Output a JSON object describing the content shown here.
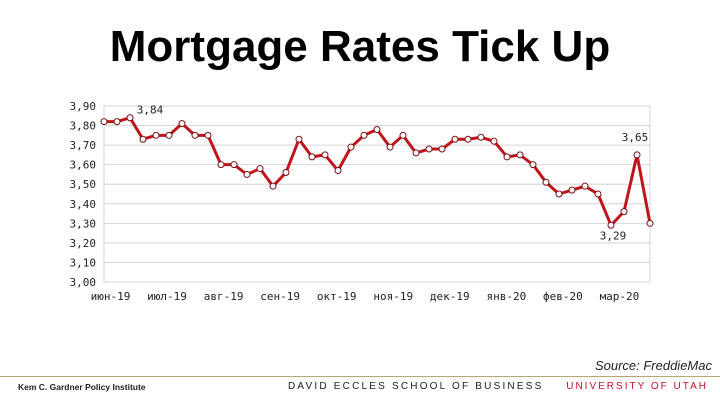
{
  "slide": {
    "title": "Mortgage Rates Tick Up",
    "source": "Source: FreddieMac",
    "footer_left": "Kem C. Gardner Policy Institute",
    "footer_center": "DAVID ECCLES SCHOOL OF BUSINESS",
    "footer_right": "UNIVERSITY OF UTAH"
  },
  "chart_data": {
    "type": "line",
    "title": "Mortgage Rates Tick Up",
    "xlabel": "",
    "ylabel": "",
    "ylim": [
      3.0,
      3.9
    ],
    "yticks": [
      "3,00",
      "3,10",
      "3,20",
      "3,30",
      "3,40",
      "3,50",
      "3,60",
      "3,70",
      "3,80",
      "3,90"
    ],
    "xtick_labels": [
      "июн-19",
      "июл-19",
      "авг-19",
      "сен-19",
      "окт-19",
      "ноя-19",
      "дек-19",
      "янв-20",
      "фев-20",
      "мар-20"
    ],
    "grid": true,
    "line_color": "#c0151b",
    "series": [
      {
        "values": [
          3.82,
          3.82,
          3.84,
          3.73,
          3.75,
          3.75,
          3.81,
          3.75,
          3.75,
          3.6,
          3.6,
          3.55,
          3.58,
          3.49,
          3.56,
          3.73,
          3.64,
          3.65,
          3.57,
          3.69,
          3.75,
          3.78,
          3.69,
          3.75,
          3.66,
          3.68,
          3.68,
          3.73,
          3.73,
          3.74,
          3.72,
          3.64,
          3.65,
          3.6,
          3.51,
          3.45,
          3.47,
          3.49,
          3.45,
          3.29,
          3.36,
          3.65,
          3.3
        ]
      }
    ],
    "data_labels": [
      {
        "index": 2,
        "text": "3,84"
      },
      {
        "index": 41,
        "text": "3,65"
      },
      {
        "index": 39,
        "text": "3,29"
      }
    ]
  }
}
